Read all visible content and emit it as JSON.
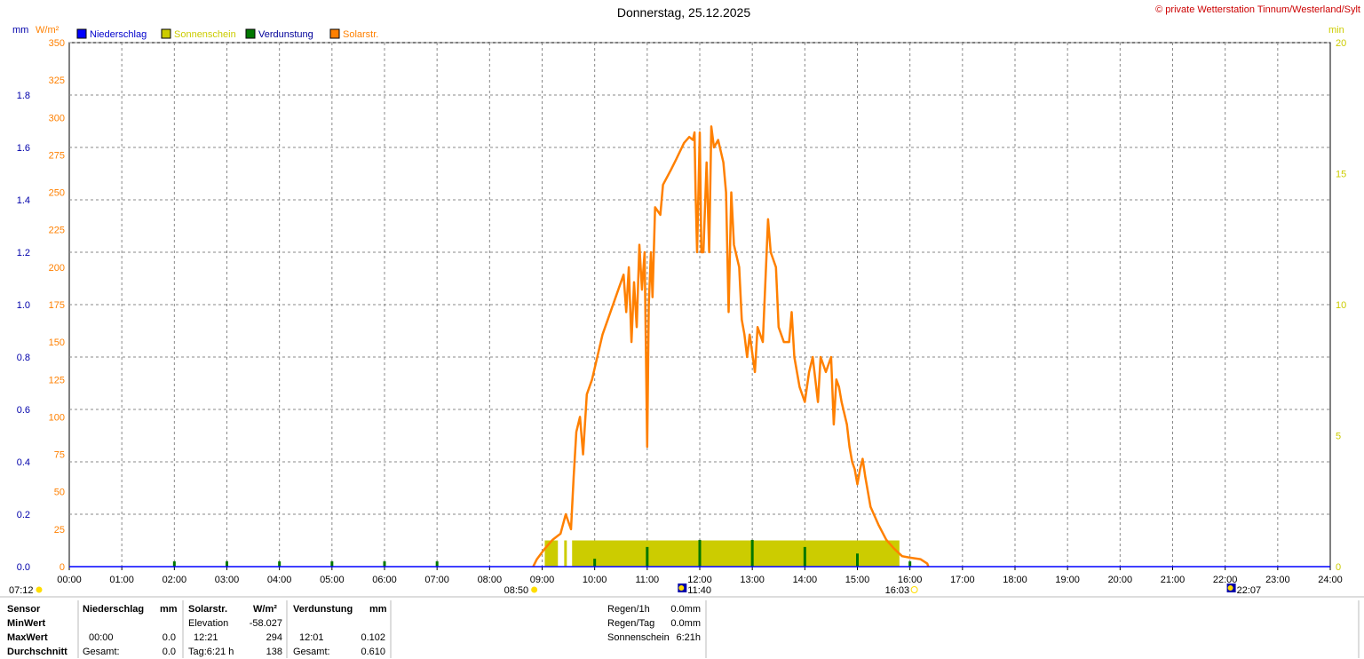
{
  "chart_data": {
    "type": "line",
    "title": "Donnerstag, 25.12.2025",
    "copyright": "© private Wetterstation Tinnum/Westerland/Sylt",
    "unit_left_mm": "mm",
    "unit_left_wm2": "W/m²",
    "unit_right": "min",
    "legend": [
      {
        "label": "Niederschlag",
        "color": "#0000ff",
        "textColor": "#0000cc"
      },
      {
        "label": "Sonnenschein",
        "color": "#cccc00",
        "textColor": "#cccc00"
      },
      {
        "label": "Verdunstung",
        "color": "#007700",
        "textColor": "#000099"
      },
      {
        "label": "Solarstr.",
        "color": "#ff8000",
        "textColor": "#ff8000"
      }
    ],
    "x_ticks": [
      "00:00",
      "01:00",
      "02:00",
      "03:00",
      "04:00",
      "05:00",
      "06:00",
      "07:00",
      "08:00",
      "09:00",
      "10:00",
      "11:00",
      "12:00",
      "13:00",
      "14:00",
      "15:00",
      "16:00",
      "17:00",
      "18:00",
      "19:00",
      "20:00",
      "21:00",
      "22:00",
      "23:00",
      "24:00"
    ],
    "y_wm2_ticks": [
      "0",
      "25",
      "50",
      "75",
      "100",
      "125",
      "150",
      "175",
      "200",
      "225",
      "250",
      "275",
      "300",
      "325",
      "350"
    ],
    "y_mm_ticks": [
      "0.0",
      "0.2",
      "0.4",
      "0.6",
      "0.8",
      "1.0",
      "1.2",
      "1.4",
      "1.6",
      "1.8"
    ],
    "y_min_ticks": [
      "0",
      "5",
      "10",
      "15",
      "20"
    ],
    "ylim_wm2": [
      0,
      350
    ],
    "ylim_mm": [
      0,
      2.0
    ],
    "ylim_min": [
      0,
      20
    ],
    "grid": true,
    "events": [
      {
        "label": "07:12",
        "time": 7.2,
        "kind": "sunrise"
      },
      {
        "label": "08:50",
        "time": 8.833,
        "kind": "sun-visible"
      },
      {
        "label": "11:40",
        "time": 11.667,
        "kind": "moonrise"
      },
      {
        "label": "16:03",
        "time": 16.05,
        "kind": "sunset"
      },
      {
        "label": "22:07",
        "time": 22.117,
        "kind": "moonset"
      }
    ],
    "solar_series": {
      "name": "Solarstr.",
      "points": [
        [
          8.83,
          0
        ],
        [
          8.9,
          5
        ],
        [
          9.05,
          12
        ],
        [
          9.2,
          18
        ],
        [
          9.35,
          22
        ],
        [
          9.45,
          35
        ],
        [
          9.55,
          25
        ],
        [
          9.6,
          60
        ],
        [
          9.65,
          90
        ],
        [
          9.72,
          100
        ],
        [
          9.78,
          75
        ],
        [
          9.85,
          115
        ],
        [
          9.95,
          125
        ],
        [
          10.05,
          140
        ],
        [
          10.15,
          155
        ],
        [
          10.3,
          170
        ],
        [
          10.45,
          185
        ],
        [
          10.55,
          195
        ],
        [
          10.6,
          170
        ],
        [
          10.65,
          200
        ],
        [
          10.7,
          150
        ],
        [
          10.75,
          190
        ],
        [
          10.8,
          160
        ],
        [
          10.85,
          215
        ],
        [
          10.9,
          185
        ],
        [
          10.95,
          210
        ],
        [
          11.0,
          80
        ],
        [
          11.03,
          175
        ],
        [
          11.07,
          210
        ],
        [
          11.1,
          180
        ],
        [
          11.15,
          240
        ],
        [
          11.25,
          235
        ],
        [
          11.3,
          255
        ],
        [
          11.45,
          265
        ],
        [
          11.55,
          272
        ],
        [
          11.7,
          283
        ],
        [
          11.8,
          287
        ],
        [
          11.87,
          285
        ],
        [
          11.9,
          290
        ],
        [
          11.92,
          250
        ],
        [
          11.95,
          210
        ],
        [
          12.0,
          290
        ],
        [
          12.03,
          210
        ],
        [
          12.07,
          210
        ],
        [
          12.13,
          270
        ],
        [
          12.18,
          210
        ],
        [
          12.22,
          294
        ],
        [
          12.27,
          280
        ],
        [
          12.35,
          285
        ],
        [
          12.45,
          270
        ],
        [
          12.5,
          250
        ],
        [
          12.55,
          170
        ],
        [
          12.6,
          250
        ],
        [
          12.65,
          215
        ],
        [
          12.75,
          200
        ],
        [
          12.8,
          165
        ],
        [
          12.85,
          155
        ],
        [
          12.9,
          140
        ],
        [
          12.95,
          155
        ],
        [
          13.05,
          130
        ],
        [
          13.1,
          160
        ],
        [
          13.2,
          150
        ],
        [
          13.3,
          232
        ],
        [
          13.35,
          210
        ],
        [
          13.45,
          200
        ],
        [
          13.5,
          160
        ],
        [
          13.6,
          150
        ],
        [
          13.7,
          150
        ],
        [
          13.75,
          170
        ],
        [
          13.8,
          140
        ],
        [
          13.9,
          120
        ],
        [
          14.0,
          110
        ],
        [
          14.08,
          130
        ],
        [
          14.15,
          140
        ],
        [
          14.25,
          110
        ],
        [
          14.3,
          140
        ],
        [
          14.4,
          130
        ],
        [
          14.5,
          140
        ],
        [
          14.55,
          95
        ],
        [
          14.6,
          125
        ],
        [
          14.65,
          120
        ],
        [
          14.7,
          110
        ],
        [
          14.8,
          95
        ],
        [
          14.85,
          80
        ],
        [
          14.9,
          70
        ],
        [
          14.95,
          65
        ],
        [
          15.0,
          55
        ],
        [
          15.05,
          65
        ],
        [
          15.1,
          72
        ],
        [
          15.15,
          60
        ],
        [
          15.25,
          40
        ],
        [
          15.4,
          28
        ],
        [
          15.55,
          18
        ],
        [
          15.7,
          12
        ],
        [
          15.85,
          7
        ],
        [
          16.0,
          6
        ],
        [
          16.2,
          5
        ],
        [
          16.33,
          2
        ],
        [
          16.35,
          0
        ]
      ]
    },
    "sunshine_series": {
      "name": "Sonnenschein",
      "minutes_per_slot": 1,
      "segments": [
        [
          9.05,
          9.3
        ],
        [
          9.42,
          9.47
        ],
        [
          9.57,
          15.8
        ]
      ]
    },
    "evaporation_series": {
      "name": "Verdunstung",
      "points": [
        [
          2,
          0.02
        ],
        [
          3,
          0.02
        ],
        [
          4,
          0.02
        ],
        [
          5,
          0.02
        ],
        [
          6,
          0.02
        ],
        [
          7,
          0.02
        ],
        [
          10,
          0.03
        ],
        [
          11,
          0.075
        ],
        [
          12,
          0.102
        ],
        [
          13,
          0.102
        ],
        [
          14,
          0.075
        ],
        [
          15,
          0.05
        ],
        [
          16,
          0.02
        ]
      ]
    }
  },
  "table": {
    "headers": {
      "sensor": "Sensor",
      "niederschlag": "Niederschlag",
      "mm1": "mm",
      "solar": "Solarstr.",
      "wm2": "W/m²",
      "verdunstung": "Verdunstung",
      "mm2": "mm"
    },
    "rows": {
      "min": {
        "label": "MinWert",
        "solar_time": "Elevation",
        "solar_val": "-58.027"
      },
      "max": {
        "label": "MaxWert",
        "rain_time": "00:00",
        "rain_val": "0.0",
        "solar_time": "12:21",
        "solar_val": "294",
        "evap_time": "12:01",
        "evap_val": "0.102"
      },
      "avg": {
        "label": "Durchschnitt",
        "rain_time": "Gesamt:",
        "rain_val": "0.0",
        "solar_time": "Tag:6:21 h",
        "solar_val": "138",
        "evap_time": "Gesamt:",
        "evap_val": "0.610"
      }
    },
    "summary": [
      {
        "label": "Regen/1h",
        "value": "0.0mm"
      },
      {
        "label": "Regen/Tag",
        "value": "0.0mm"
      },
      {
        "label": "Sonnenschein",
        "value": "6:21h"
      }
    ]
  }
}
